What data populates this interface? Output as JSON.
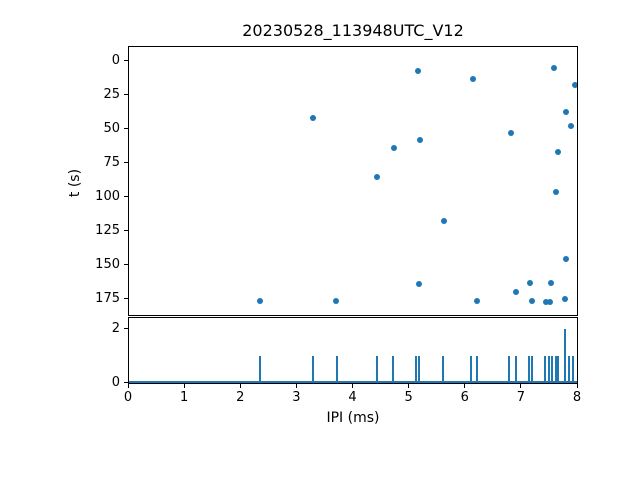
{
  "figure": {
    "title": "20230528_113948UTC_V12",
    "background": "#ffffff",
    "accent_color": "#1f77b4",
    "axis_color": "#000000"
  },
  "chart_data": [
    {
      "type": "scatter",
      "title": "20230528_113948UTC_V12",
      "xlabel": "",
      "ylabel": "t (s)",
      "xlim": [
        0,
        8
      ],
      "ylim": [
        188,
        -10
      ],
      "y_inverted": true,
      "grid": false,
      "legend": "none",
      "xticks": [
        0,
        1,
        2,
        3,
        4,
        5,
        6,
        7,
        8
      ],
      "xticklabels_visible": false,
      "yticks": [
        0,
        25,
        50,
        75,
        100,
        125,
        150,
        175
      ],
      "marker_color": "#1f77b4",
      "points": [
        [
          2.35,
          177
        ],
        [
          3.3,
          42.5
        ],
        [
          3.71,
          177
        ],
        [
          4.44,
          86
        ],
        [
          4.74,
          64.5
        ],
        [
          5.17,
          8
        ],
        [
          5.19,
          164.5
        ],
        [
          5.2,
          59
        ],
        [
          5.63,
          118.5
        ],
        [
          6.15,
          14
        ],
        [
          6.22,
          177
        ],
        [
          6.82,
          53.5
        ],
        [
          6.91,
          170.5
        ],
        [
          7.16,
          164
        ],
        [
          7.2,
          177
        ],
        [
          7.44,
          177.5
        ],
        [
          7.52,
          177.5
        ],
        [
          7.54,
          164
        ],
        [
          7.59,
          6
        ],
        [
          7.63,
          97
        ],
        [
          7.66,
          67.5
        ],
        [
          7.79,
          175.5
        ],
        [
          7.81,
          38.5
        ],
        [
          7.8,
          146
        ],
        [
          7.89,
          48.5
        ],
        [
          7.97,
          18.5
        ]
      ]
    },
    {
      "type": "bar",
      "xlabel": "IPI (ms)",
      "ylabel": "",
      "xlim": [
        0,
        8
      ],
      "ylim": [
        0,
        2.45
      ],
      "grid": false,
      "legend": "none",
      "xticks": [
        0,
        1,
        2,
        3,
        4,
        5,
        6,
        7,
        8
      ],
      "yticks": [
        0,
        2
      ],
      "bar_color": "#1f77b4",
      "baseline_at_zero": true,
      "bars": [
        [
          2.35,
          1
        ],
        [
          3.3,
          1
        ],
        [
          3.72,
          1
        ],
        [
          4.44,
          1
        ],
        [
          4.72,
          1
        ],
        [
          5.14,
          1
        ],
        [
          5.19,
          1
        ],
        [
          5.61,
          1
        ],
        [
          6.12,
          1
        ],
        [
          6.21,
          1
        ],
        [
          6.79,
          1
        ],
        [
          6.91,
          1
        ],
        [
          7.14,
          1
        ],
        [
          7.2,
          1
        ],
        [
          7.43,
          1
        ],
        [
          7.51,
          1
        ],
        [
          7.56,
          1
        ],
        [
          7.62,
          1
        ],
        [
          7.67,
          1
        ],
        [
          7.79,
          2
        ],
        [
          7.86,
          1
        ],
        [
          7.92,
          1
        ]
      ]
    }
  ]
}
